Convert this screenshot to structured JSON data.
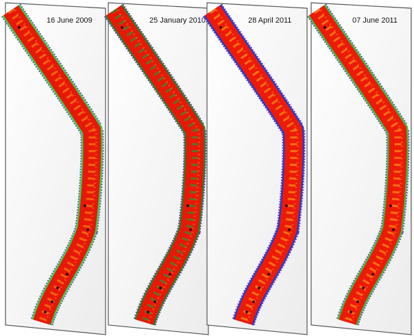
{
  "panels": [
    {
      "date": "16 June 2009"
    },
    {
      "date": "25 January 2010"
    },
    {
      "date": "28 April 2011"
    },
    {
      "date": "07 June 2011"
    }
  ]
}
